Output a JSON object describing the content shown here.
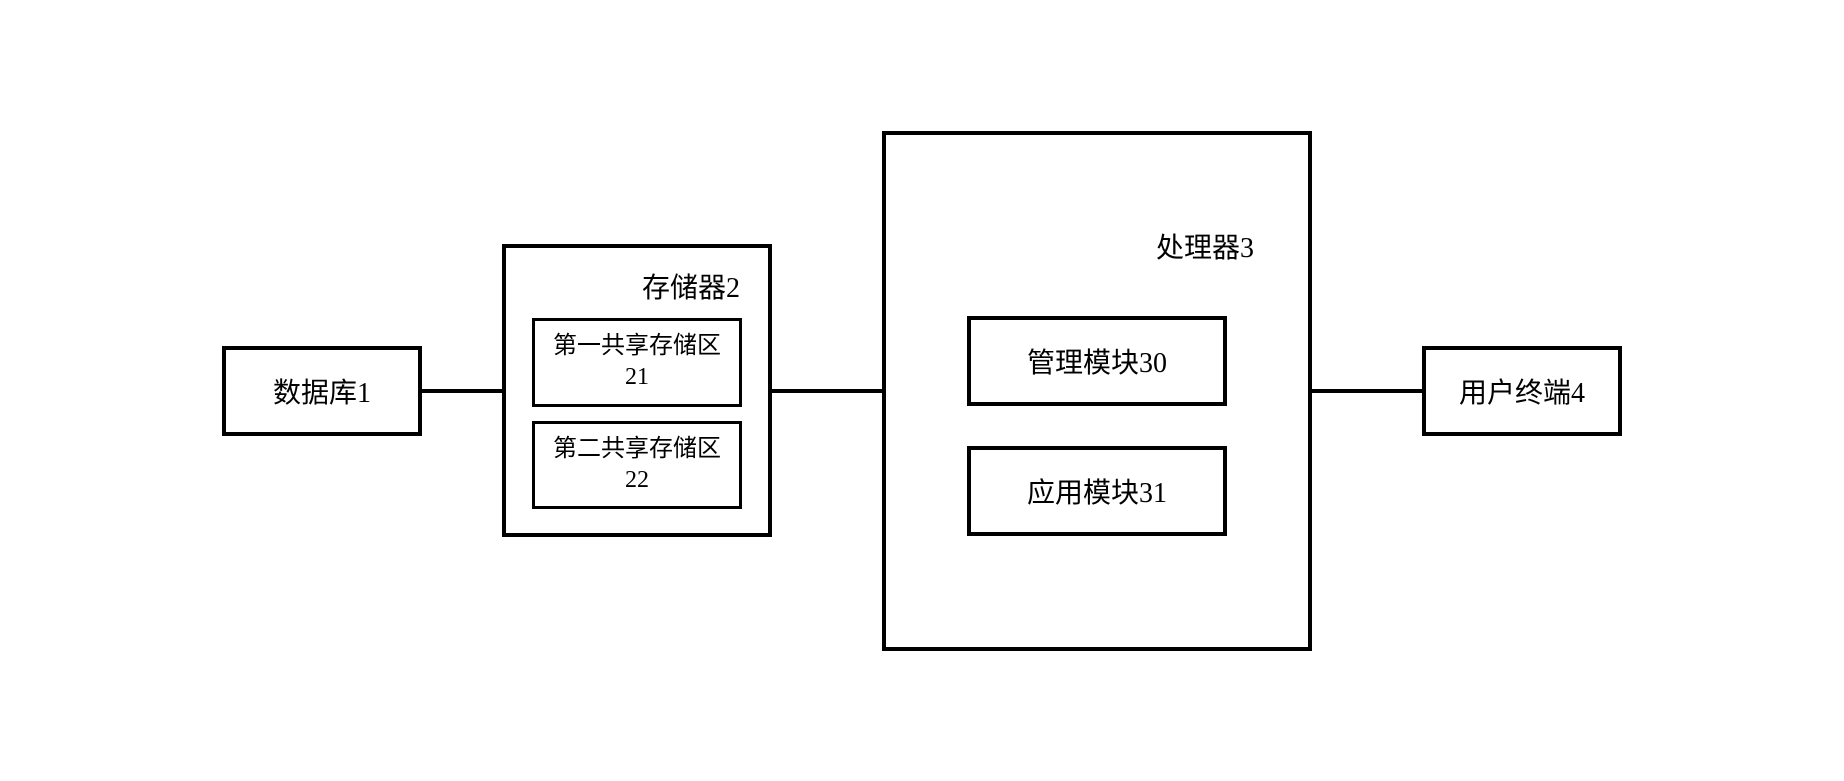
{
  "diagram": {
    "type": "flowchart",
    "background_color": "#ffffff",
    "stroke_color": "#000000",
    "stroke_width": 4,
    "font_family": "SimSun",
    "database": {
      "label": "数据库1",
      "fontsize": 28
    },
    "storage": {
      "title": "存储器2",
      "title_fontsize": 28,
      "region1": {
        "label": "第一共享存储区21",
        "fontsize": 24
      },
      "region2": {
        "label": "第二共享存储区22",
        "fontsize": 24
      }
    },
    "processor": {
      "title": "处理器3",
      "title_fontsize": 28,
      "module1": {
        "label": "管理模块30",
        "fontsize": 28
      },
      "module2": {
        "label": "应用模块31",
        "fontsize": 28
      }
    },
    "terminal": {
      "label": "用户终端4",
      "fontsize": 28
    },
    "connectors": [
      {
        "from": "database",
        "to": "storage"
      },
      {
        "from": "storage",
        "to": "processor"
      },
      {
        "from": "processor",
        "to": "terminal"
      }
    ]
  }
}
